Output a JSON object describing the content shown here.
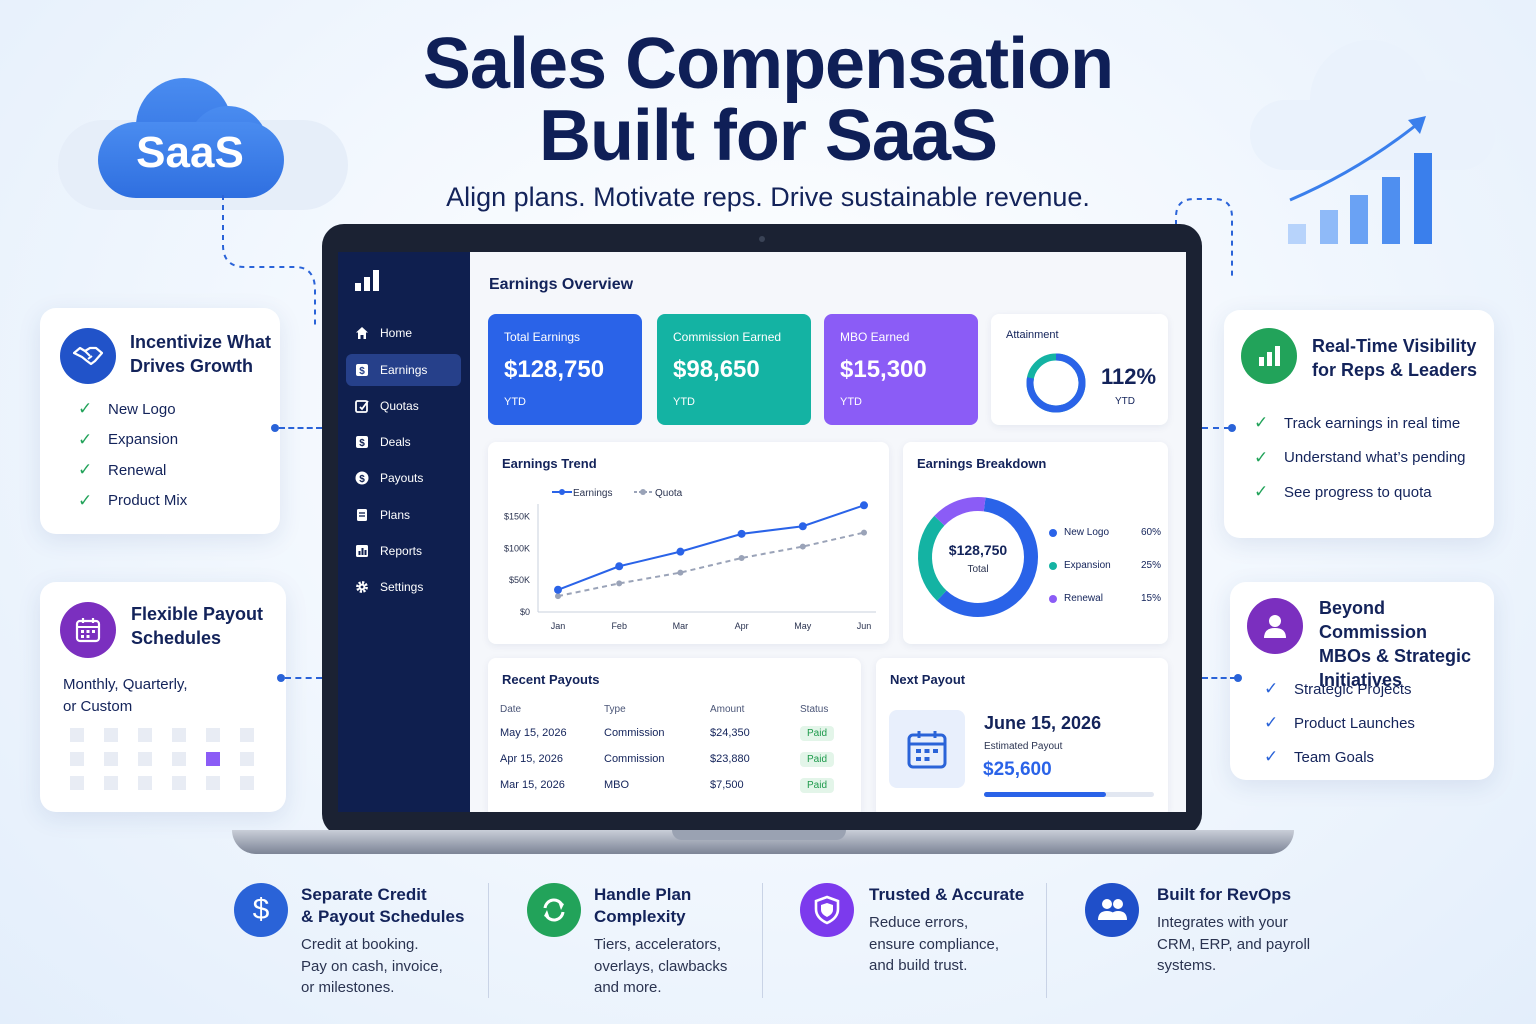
{
  "header": {
    "title_line1": "Sales Compensation",
    "title_line2": "Built for SaaS",
    "subtitle": "Align plans. Motivate reps. Drive sustainable revenue."
  },
  "saas_badge": "SaaS",
  "colors": {
    "navy": "#0f1f4f",
    "blue": "#2a63d8",
    "teal": "#14b3a3",
    "purple": "#8b5cf6",
    "green": "#22a35a"
  },
  "left_cards": {
    "incentivize": {
      "title_line1": "Incentivize What",
      "title_line2": "Drives Growth",
      "icon": "handshake-icon",
      "items": [
        "New Logo",
        "Expansion",
        "Renewal",
        "Product Mix"
      ]
    },
    "payout": {
      "title_line1": "Flexible Payout",
      "title_line2": "Schedules",
      "icon": "calendar-icon",
      "body_line1": "Monthly, Quarterly,",
      "body_line2": "or Custom"
    }
  },
  "right_cards": {
    "visibility": {
      "title_line1": "Real-Time Visibility",
      "title_line2": "for Reps & Leaders",
      "icon": "bar-chart-icon",
      "items": [
        "Track earnings in real time",
        "Understand what’s pending",
        "See progress to quota"
      ]
    },
    "beyond": {
      "title_line1": "Beyond Commission",
      "title_line2": "MBOs & Strategic",
      "title_line3": "Initiatives",
      "icon": "user-icon",
      "items": [
        "Strategic Projects",
        "Product Launches",
        "Team Goals"
      ]
    }
  },
  "app": {
    "nav": [
      {
        "label": "Home",
        "icon": "home-icon"
      },
      {
        "label": "Earnings",
        "icon": "earnings-icon",
        "active": true
      },
      {
        "label": "Quotas",
        "icon": "quota-icon"
      },
      {
        "label": "Deals",
        "icon": "deals-icon"
      },
      {
        "label": "Payouts",
        "icon": "dollar-icon"
      },
      {
        "label": "Plans",
        "icon": "plans-icon"
      },
      {
        "label": "Reports",
        "icon": "reports-icon"
      },
      {
        "label": "Settings",
        "icon": "gear-icon"
      }
    ],
    "page_title": "Earnings Overview",
    "kpis": [
      {
        "label": "Total Earnings",
        "value": "$128,750",
        "sub": "YTD",
        "color": "#2a63e8"
      },
      {
        "label": "Commission Earned",
        "value": "$98,650",
        "sub": "YTD",
        "color": "#14b3a3"
      },
      {
        "label": "MBO Earned",
        "value": "$15,300",
        "sub": "YTD",
        "color": "#8b5cf6"
      }
    ],
    "attainment": {
      "label": "Attainment",
      "value": "112%",
      "sub": "YTD",
      "fraction": 1.0
    },
    "trend": {
      "title": "Earnings Trend",
      "legend_earnings": "Earnings",
      "legend_quota": "Quota"
    },
    "breakdown": {
      "title": "Earnings Breakdown",
      "center_value": "$128,750",
      "center_label": "Total",
      "slices": [
        {
          "label": "New Logo",
          "pct": "60%",
          "value": 60,
          "color": "#2a63e8"
        },
        {
          "label": "Expansion",
          "pct": "25%",
          "value": 25,
          "color": "#14b3a3"
        },
        {
          "label": "Renewal",
          "pct": "15%",
          "value": 15,
          "color": "#8b5cf6"
        }
      ]
    },
    "recent_payouts": {
      "title": "Recent Payouts",
      "headers": [
        "Date",
        "Type",
        "Amount",
        "Status"
      ],
      "rows": [
        [
          "May 15, 2026",
          "Commission",
          "$24,350",
          "Paid"
        ],
        [
          "Apr 15, 2026",
          "Commission",
          "$23,880",
          "Paid"
        ],
        [
          "Mar 15, 2026",
          "MBO",
          "$7,500",
          "Paid"
        ]
      ]
    },
    "next_payout": {
      "title": "Next Payout",
      "date": "June 15, 2026",
      "label": "Estimated Payout",
      "amount": "$25,600",
      "progress": 0.72
    }
  },
  "chart_data": {
    "type": "line",
    "title": "Earnings Trend",
    "categories": [
      "Jan",
      "Feb",
      "Mar",
      "Apr",
      "May",
      "Jun"
    ],
    "y_ticks": [
      "$150K",
      "$100K",
      "$50K",
      "$0"
    ],
    "ylim": [
      0,
      170000
    ],
    "series": [
      {
        "name": "Earnings",
        "values": [
          35000,
          72000,
          95000,
          123000,
          135000,
          168000
        ]
      },
      {
        "name": "Quota",
        "values": [
          25000,
          45000,
          62000,
          85000,
          103000,
          125000
        ]
      }
    ]
  },
  "features": [
    {
      "title_line1": "Separate Credit",
      "title_line2": "& Payout Schedules",
      "body": [
        "Credit at booking.",
        "Pay on cash, invoice,",
        "or milestones."
      ],
      "icon": "dollar-icon",
      "color": "#2a63d8"
    },
    {
      "title_line1": "Handle Plan",
      "title_line2": "Complexity",
      "body": [
        "Tiers, accelerators,",
        "overlays, clawbacks",
        "and more."
      ],
      "icon": "refresh-icon",
      "color": "#22a35a"
    },
    {
      "title_line1": "Trusted & Accurate",
      "title_line2": "",
      "body": [
        "Reduce errors,",
        "ensure compliance,",
        "and build trust."
      ],
      "icon": "shield-icon",
      "color": "#7c3aed"
    },
    {
      "title_line1": "Built for RevOps",
      "title_line2": "",
      "body": [
        "Integrates with your",
        "CRM, ERP, and payroll",
        "systems."
      ],
      "icon": "team-icon",
      "color": "#1f4fc9"
    }
  ]
}
